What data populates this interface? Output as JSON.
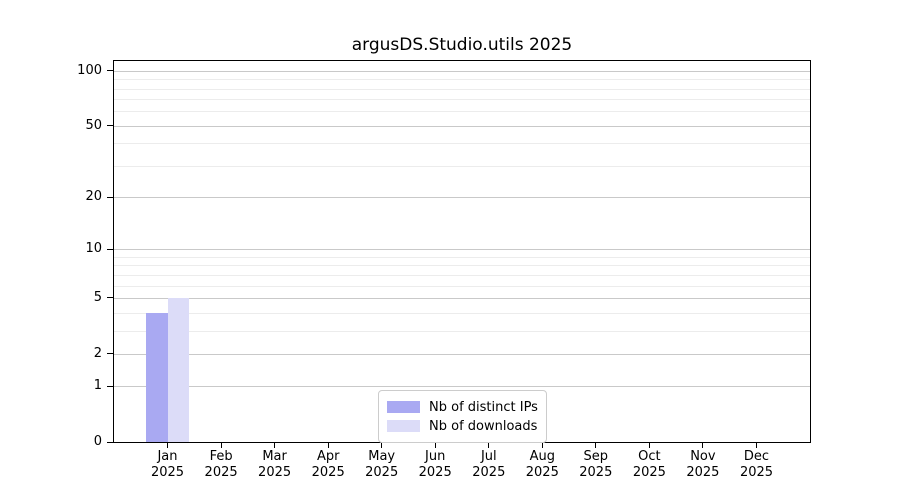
{
  "title": "argusDS.Studio.utils 2025",
  "chart_data": {
    "type": "bar",
    "title": "argusDS.Studio.utils 2025",
    "scale": "log10(1+y)",
    "ylim": [
      0,
      113
    ],
    "grid": true,
    "legend_position": "lower center",
    "categories": [
      {
        "month": "Jan",
        "year": "2025"
      },
      {
        "month": "Feb",
        "year": "2025"
      },
      {
        "month": "Mar",
        "year": "2025"
      },
      {
        "month": "Apr",
        "year": "2025"
      },
      {
        "month": "May",
        "year": "2025"
      },
      {
        "month": "Jun",
        "year": "2025"
      },
      {
        "month": "Jul",
        "year": "2025"
      },
      {
        "month": "Aug",
        "year": "2025"
      },
      {
        "month": "Sep",
        "year": "2025"
      },
      {
        "month": "Oct",
        "year": "2025"
      },
      {
        "month": "Nov",
        "year": "2025"
      },
      {
        "month": "Dec",
        "year": "2025"
      }
    ],
    "series": [
      {
        "name": "Nb of distinct IPs",
        "color": "#a9a9f2",
        "values": [
          4,
          0,
          0,
          0,
          0,
          0,
          0,
          0,
          0,
          0,
          0,
          0
        ]
      },
      {
        "name": "Nb of downloads",
        "color": "#dcdcf8",
        "values": [
          5,
          0,
          0,
          0,
          0,
          0,
          0,
          0,
          0,
          0,
          0,
          0
        ]
      }
    ],
    "y_major_ticks": [
      0,
      1,
      2,
      5,
      10,
      20,
      50,
      100
    ],
    "y_minor_ticks": [
      3,
      4,
      6,
      7,
      8,
      9,
      30,
      40,
      60,
      70,
      80,
      90
    ],
    "colors": {
      "major_grid": "#c9c9c9",
      "minor_grid": "#ececec",
      "spine": "#000000",
      "background": "#ffffff"
    }
  }
}
